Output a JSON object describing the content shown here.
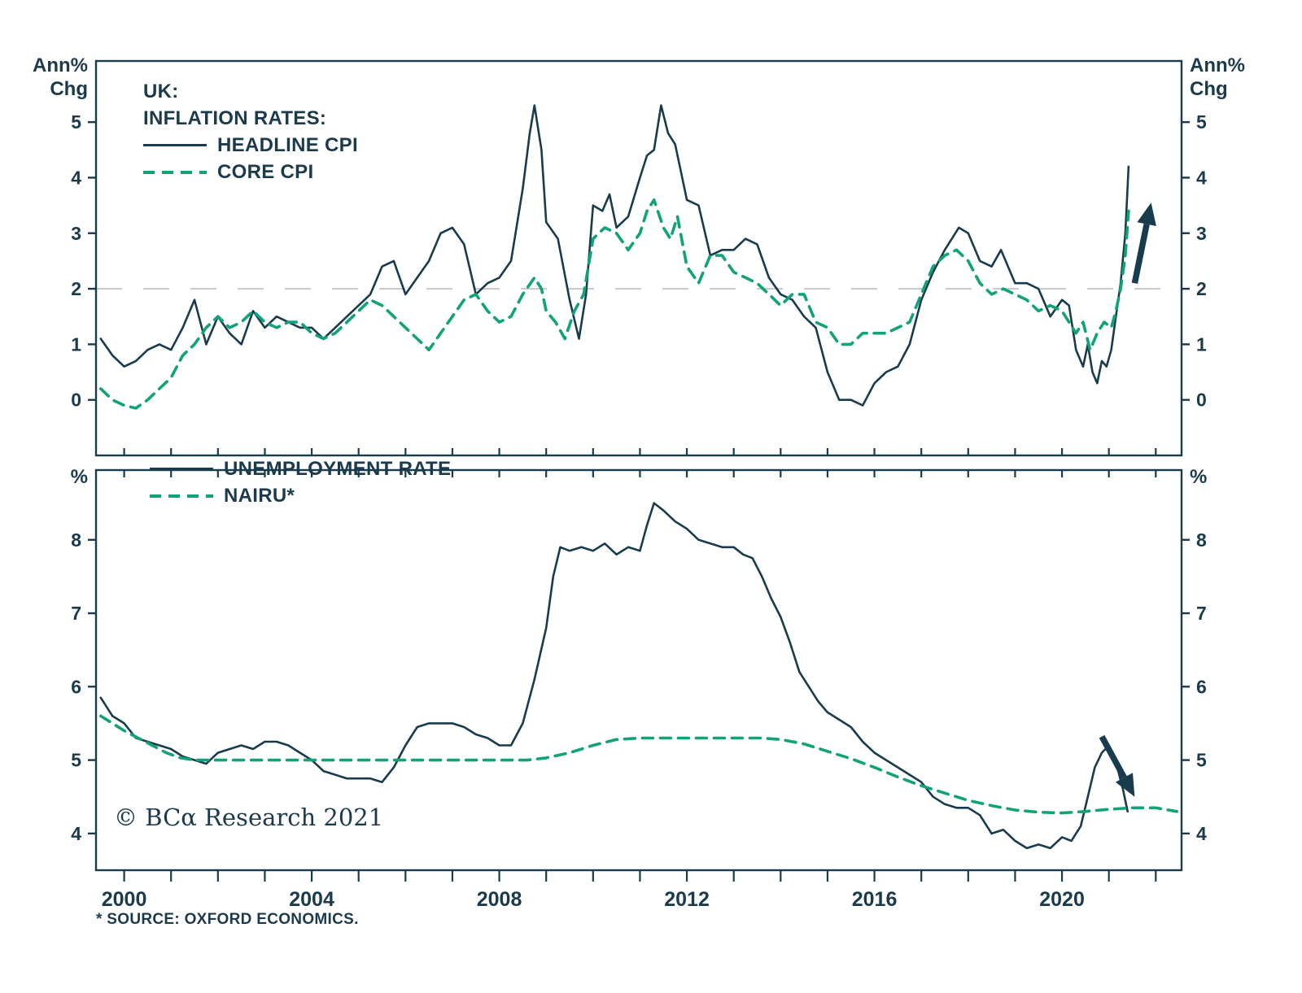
{
  "meta": {
    "copyright": "© BCα Research 2021",
    "source_note": "* SOURCE: OXFORD ECONOMICS."
  },
  "colors": {
    "line_dark": "#183B4E",
    "line_green": "#11A378",
    "refline_gray": "#C7C7C7",
    "text": "#1B3A4C"
  },
  "chart_data": [
    {
      "type": "line",
      "title": "UK: INFLATION RATES",
      "title_lines": [
        "UK:",
        "INFLATION RATES:"
      ],
      "axis_unit_lines": [
        "Ann%",
        "Chg"
      ],
      "ylabel": "Ann% Chg",
      "xlim": [
        1999.4,
        2022.55
      ],
      "ylim": [
        -1.0,
        6.1
      ],
      "yticks": [
        0,
        1,
        2,
        3,
        4,
        5
      ],
      "xtick_labels": [],
      "refline_y": 2,
      "legend": [
        {
          "label": "HEADLINE CPI",
          "style": "solid"
        },
        {
          "label": "CORE CPI",
          "style": "dashed"
        }
      ],
      "series": [
        {
          "name": "HEADLINE CPI",
          "style": "solid",
          "x": [
            1999.5,
            1999.75,
            2000,
            2000.25,
            2000.5,
            2000.75,
            2001,
            2001.25,
            2001.5,
            2001.75,
            2002,
            2002.25,
            2002.5,
            2002.75,
            2003,
            2003.25,
            2003.5,
            2003.75,
            2004,
            2004.25,
            2004.5,
            2004.75,
            2005,
            2005.25,
            2005.5,
            2005.75,
            2006,
            2006.25,
            2006.5,
            2006.75,
            2007,
            2007.25,
            2007.5,
            2007.75,
            2008,
            2008.25,
            2008.5,
            2008.65,
            2008.75,
            2008.9,
            2009,
            2009.25,
            2009.5,
            2009.7,
            2009.85,
            2010,
            2010.2,
            2010.35,
            2010.5,
            2010.75,
            2011,
            2011.15,
            2011.3,
            2011.45,
            2011.6,
            2011.75,
            2012,
            2012.25,
            2012.5,
            2012.75,
            2013,
            2013.25,
            2013.5,
            2013.75,
            2014,
            2014.25,
            2014.5,
            2014.75,
            2015,
            2015.25,
            2015.5,
            2015.75,
            2016,
            2016.25,
            2016.5,
            2016.75,
            2017,
            2017.25,
            2017.5,
            2017.8,
            2018,
            2018.25,
            2018.5,
            2018.7,
            2019,
            2019.25,
            2019.5,
            2019.75,
            2020,
            2020.15,
            2020.3,
            2020.45,
            2020.55,
            2020.65,
            2020.75,
            2020.85,
            2020.95,
            2021.05,
            2021.15,
            2021.25,
            2021.35,
            2021.42
          ],
          "y": [
            1.1,
            0.8,
            0.6,
            0.7,
            0.9,
            1.0,
            0.9,
            1.3,
            1.8,
            1.0,
            1.5,
            1.2,
            1.0,
            1.6,
            1.3,
            1.5,
            1.4,
            1.3,
            1.3,
            1.1,
            1.3,
            1.5,
            1.7,
            1.9,
            2.4,
            2.5,
            1.9,
            2.2,
            2.5,
            3.0,
            3.1,
            2.8,
            1.9,
            2.1,
            2.2,
            2.5,
            3.8,
            4.8,
            5.3,
            4.5,
            3.2,
            2.9,
            1.8,
            1.1,
            1.9,
            3.5,
            3.4,
            3.7,
            3.1,
            3.3,
            4.0,
            4.4,
            4.5,
            5.3,
            4.8,
            4.6,
            3.6,
            3.5,
            2.6,
            2.7,
            2.7,
            2.9,
            2.8,
            2.2,
            1.9,
            1.8,
            1.5,
            1.3,
            0.5,
            0.0,
            0.0,
            -0.1,
            0.3,
            0.5,
            0.6,
            1.0,
            1.8,
            2.3,
            2.7,
            3.1,
            3.0,
            2.5,
            2.4,
            2.7,
            2.1,
            2.1,
            2.0,
            1.5,
            1.8,
            1.7,
            0.9,
            0.6,
            1.0,
            0.5,
            0.3,
            0.7,
            0.6,
            0.9,
            1.5,
            2.1,
            3.0,
            4.2
          ]
        },
        {
          "name": "CORE CPI",
          "style": "dashed",
          "x": [
            1999.5,
            1999.75,
            2000,
            2000.25,
            2000.5,
            2000.75,
            2001,
            2001.25,
            2001.5,
            2001.75,
            2002,
            2002.25,
            2002.5,
            2002.75,
            2003,
            2003.25,
            2003.5,
            2003.75,
            2004,
            2004.25,
            2004.5,
            2004.75,
            2005,
            2005.25,
            2005.5,
            2005.75,
            2006,
            2006.25,
            2006.5,
            2006.75,
            2007,
            2007.25,
            2007.5,
            2007.75,
            2008,
            2008.25,
            2008.5,
            2008.75,
            2008.9,
            2009,
            2009.2,
            2009.4,
            2009.6,
            2009.8,
            2010,
            2010.25,
            2010.5,
            2010.75,
            2011,
            2011.15,
            2011.3,
            2011.5,
            2011.65,
            2011.8,
            2012,
            2012.25,
            2012.5,
            2012.75,
            2013,
            2013.25,
            2013.5,
            2013.75,
            2014,
            2014.25,
            2014.5,
            2014.75,
            2015,
            2015.25,
            2015.5,
            2015.75,
            2016,
            2016.25,
            2016.5,
            2016.75,
            2017,
            2017.25,
            2017.5,
            2017.75,
            2018,
            2018.25,
            2018.5,
            2018.75,
            2019,
            2019.25,
            2019.5,
            2019.75,
            2020,
            2020.15,
            2020.3,
            2020.45,
            2020.6,
            2020.75,
            2020.9,
            2021.05,
            2021.15,
            2021.25,
            2021.35,
            2021.42
          ],
          "y": [
            0.2,
            0.0,
            -0.1,
            -0.15,
            0.0,
            0.2,
            0.4,
            0.8,
            1.0,
            1.3,
            1.5,
            1.3,
            1.4,
            1.6,
            1.4,
            1.3,
            1.4,
            1.4,
            1.2,
            1.1,
            1.2,
            1.4,
            1.6,
            1.8,
            1.7,
            1.5,
            1.3,
            1.1,
            0.9,
            1.2,
            1.5,
            1.8,
            1.9,
            1.6,
            1.4,
            1.5,
            1.9,
            2.2,
            2.0,
            1.6,
            1.4,
            1.1,
            1.6,
            1.9,
            2.9,
            3.1,
            3.0,
            2.7,
            3.0,
            3.4,
            3.6,
            3.1,
            2.9,
            3.3,
            2.4,
            2.1,
            2.6,
            2.6,
            2.3,
            2.2,
            2.1,
            1.9,
            1.7,
            1.9,
            1.9,
            1.4,
            1.3,
            1.0,
            1.0,
            1.2,
            1.2,
            1.2,
            1.3,
            1.4,
            1.9,
            2.4,
            2.6,
            2.7,
            2.5,
            2.1,
            1.9,
            2.0,
            1.9,
            1.8,
            1.6,
            1.7,
            1.6,
            1.4,
            1.2,
            1.4,
            0.9,
            1.2,
            1.4,
            1.3,
            1.6,
            2.0,
            2.6,
            3.4
          ]
        }
      ],
      "arrow": {
        "x1": 2021.55,
        "y1": 2.1,
        "x2": 2021.9,
        "y2": 3.55,
        "direction": "up"
      }
    },
    {
      "type": "line",
      "title": "UK: UNEMPLOYMENT RATE vs NAIRU",
      "axis_unit_lines": [
        "%"
      ],
      "ylabel": "%",
      "xlim": [
        1999.4,
        2022.55
      ],
      "ylim": [
        3.5,
        8.95
      ],
      "yticks": [
        4,
        5,
        6,
        7,
        8
      ],
      "xtick_labels": [
        {
          "x": 2000,
          "label": "2000"
        },
        {
          "x": 2004,
          "label": "2004"
        },
        {
          "x": 2008,
          "label": "2008"
        },
        {
          "x": 2012,
          "label": "2012"
        },
        {
          "x": 2016,
          "label": "2016"
        },
        {
          "x": 2020,
          "label": "2020"
        }
      ],
      "legend": [
        {
          "label": "UNEMPLOYMENT RATE",
          "style": "solid"
        },
        {
          "label": "NAIRU*",
          "style": "dashed"
        }
      ],
      "series": [
        {
          "name": "UNEMPLOYMENT RATE",
          "style": "solid",
          "x": [
            1999.5,
            1999.75,
            2000,
            2000.25,
            2000.5,
            2000.75,
            2001,
            2001.25,
            2001.5,
            2001.75,
            2002,
            2002.25,
            2002.5,
            2002.75,
            2003,
            2003.25,
            2003.5,
            2003.75,
            2004,
            2004.25,
            2004.5,
            2004.75,
            2005,
            2005.25,
            2005.5,
            2005.75,
            2006,
            2006.25,
            2006.5,
            2006.75,
            2007,
            2007.25,
            2007.5,
            2007.75,
            2008,
            2008.25,
            2008.5,
            2008.75,
            2009,
            2009.15,
            2009.3,
            2009.5,
            2009.75,
            2010,
            2010.25,
            2010.5,
            2010.75,
            2011,
            2011.15,
            2011.3,
            2011.5,
            2011.75,
            2012,
            2012.25,
            2012.5,
            2012.75,
            2013,
            2013.2,
            2013.4,
            2013.6,
            2013.8,
            2014,
            2014.2,
            2014.4,
            2014.6,
            2014.8,
            2015,
            2015.25,
            2015.5,
            2015.75,
            2016,
            2016.25,
            2016.5,
            2016.75,
            2017,
            2017.25,
            2017.5,
            2017.75,
            2018,
            2018.25,
            2018.5,
            2018.75,
            2019,
            2019.25,
            2019.5,
            2019.75,
            2020,
            2020.2,
            2020.4,
            2020.55,
            2020.7,
            2020.85,
            2021,
            2021.1,
            2021.2,
            2021.3,
            2021.4
          ],
          "y": [
            5.85,
            5.6,
            5.5,
            5.3,
            5.25,
            5.2,
            5.15,
            5.05,
            5.0,
            4.95,
            5.1,
            5.15,
            5.2,
            5.15,
            5.25,
            5.25,
            5.2,
            5.1,
            5.0,
            4.85,
            4.8,
            4.75,
            4.75,
            4.75,
            4.7,
            4.9,
            5.2,
            5.45,
            5.5,
            5.5,
            5.5,
            5.45,
            5.35,
            5.3,
            5.2,
            5.2,
            5.5,
            6.1,
            6.8,
            7.5,
            7.9,
            7.85,
            7.9,
            7.85,
            7.95,
            7.8,
            7.9,
            7.85,
            8.2,
            8.5,
            8.4,
            8.25,
            8.15,
            8.0,
            7.95,
            7.9,
            7.9,
            7.8,
            7.75,
            7.5,
            7.2,
            6.95,
            6.6,
            6.2,
            6.0,
            5.8,
            5.65,
            5.55,
            5.45,
            5.25,
            5.1,
            5.0,
            4.9,
            4.8,
            4.7,
            4.5,
            4.4,
            4.35,
            4.35,
            4.25,
            4.0,
            4.05,
            3.9,
            3.8,
            3.85,
            3.8,
            3.95,
            3.9,
            4.1,
            4.5,
            4.9,
            5.1,
            5.2,
            5.05,
            4.85,
            4.6,
            4.3
          ]
        },
        {
          "name": "NAIRU*",
          "style": "dashed",
          "x": [
            1999.5,
            1999.75,
            2000,
            2000.3,
            2000.6,
            2000.9,
            2001.2,
            2001.5,
            2002,
            2003,
            2004,
            2005,
            2006,
            2007,
            2008,
            2008.6,
            2009,
            2009.5,
            2010,
            2010.5,
            2011,
            2011.5,
            2012,
            2013,
            2013.6,
            2014,
            2014.5,
            2015,
            2015.5,
            2016,
            2016.5,
            2017,
            2017.5,
            2018,
            2018.5,
            2019,
            2019.5,
            2020,
            2020.5,
            2021,
            2021.5,
            2022,
            2022.45
          ],
          "y": [
            5.6,
            5.5,
            5.4,
            5.3,
            5.2,
            5.1,
            5.03,
            5.0,
            5.0,
            5.0,
            5.0,
            5.0,
            5.0,
            5.0,
            5.0,
            5.0,
            5.03,
            5.1,
            5.2,
            5.28,
            5.3,
            5.3,
            5.3,
            5.3,
            5.3,
            5.28,
            5.22,
            5.12,
            5.02,
            4.9,
            4.77,
            4.65,
            4.55,
            4.45,
            4.38,
            4.32,
            4.29,
            4.28,
            4.3,
            4.33,
            4.35,
            4.35,
            4.3
          ]
        }
      ],
      "arrow": {
        "x1": 2020.85,
        "y1": 5.32,
        "x2": 2021.55,
        "y2": 4.5,
        "direction": "down"
      }
    }
  ]
}
